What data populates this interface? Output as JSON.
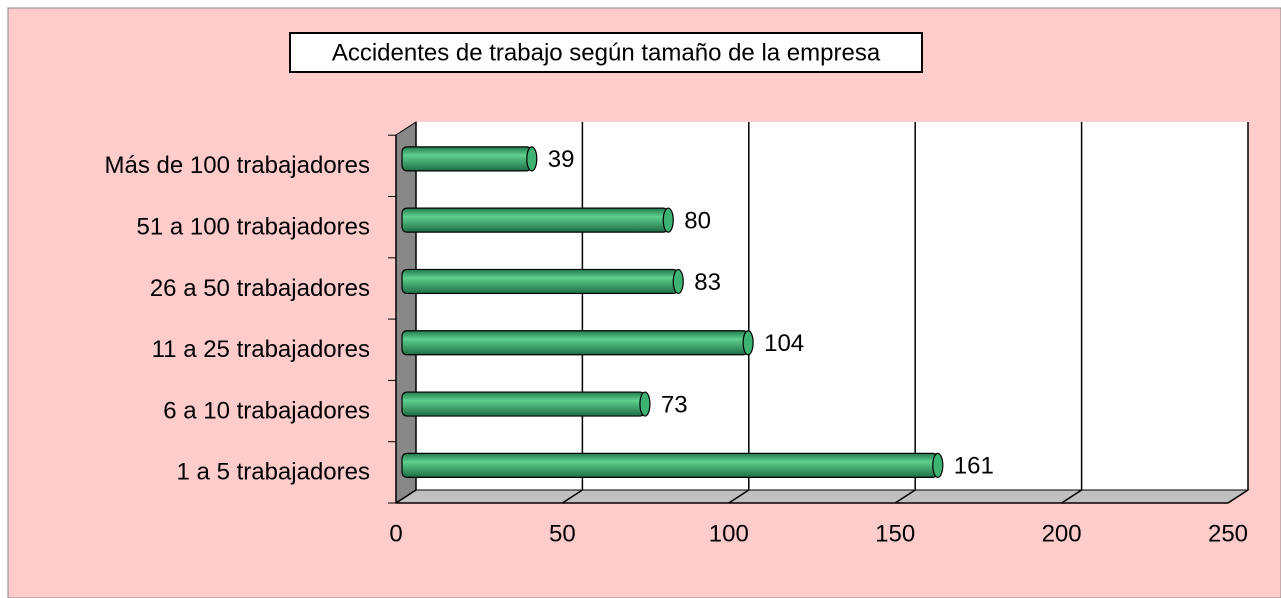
{
  "chart_data": {
    "type": "bar",
    "orientation": "horizontal",
    "title": "Accidentes de trabajo según tamaño de la empresa",
    "categories": [
      "1 a 5 trabajadores",
      "6 a 10 trabajadores",
      "11 a 25 trabajadores",
      "26 a 50 trabajadores",
      "51 a 100 trabajadores",
      "Más de 100 trabajadores"
    ],
    "values": [
      161,
      73,
      104,
      83,
      80,
      39
    ],
    "color": "#3cb371",
    "xlim": [
      0,
      250
    ],
    "xticks": [
      0,
      50,
      100,
      150,
      200,
      250
    ],
    "grid": true
  }
}
